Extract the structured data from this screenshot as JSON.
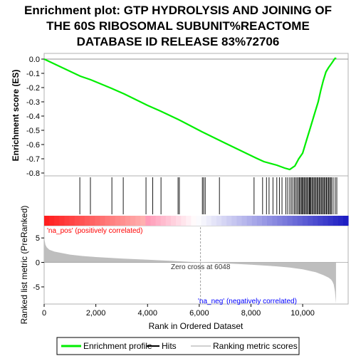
{
  "title_lines": [
    "Enrichment plot: GTP HYDROLYSIS AND JOINING OF",
    "THE 60S RIBOSOMAL SUBUNIT%REACTOME",
    "DATABASE ID RELEASE 83%72706"
  ],
  "colors": {
    "es_line": "#00ee00",
    "hits": "#000000",
    "metric_fill": "#bebebe",
    "pos_text": "#ff0000",
    "neg_text": "#0000ff",
    "zero_cross_line": "#a0a0a0",
    "frame": "#b0b0b0"
  },
  "chart_data": {
    "type": "line",
    "xlabel": "Rank in Ordered Dataset",
    "x_range": [
      0,
      11760
    ],
    "x_ticks": [
      0,
      2000,
      4000,
      6000,
      8000,
      10000
    ],
    "x_tick_labels": [
      "0",
      "2,000",
      "4,000",
      "6,000",
      "8,000",
      "10,000"
    ],
    "es_panel": {
      "ylabel": "Enrichment score (ES)",
      "ylim": [
        -0.82,
        0.04
      ],
      "y_ticks": [
        0.0,
        -0.1,
        -0.2,
        -0.3,
        -0.4,
        -0.5,
        -0.6,
        -0.7,
        -0.8
      ],
      "y_tick_labels": [
        "0.0",
        "-0.1",
        "-0.2",
        "-0.3",
        "-0.4",
        "-0.5",
        "-0.6",
        "-0.7",
        "-0.8"
      ],
      "series": [
        {
          "name": "Enrichment profile",
          "x": [
            0,
            1400,
            1800,
            2600,
            3100,
            4000,
            4500,
            5200,
            6100,
            7000,
            8200,
            8500,
            9000,
            9300,
            9500,
            9700,
            9850,
            10000,
            10150,
            10300,
            10450,
            10600,
            10700,
            10800,
            10900,
            11000,
            11100,
            11250,
            11300
          ],
          "y": [
            0.0,
            -0.12,
            -0.145,
            -0.205,
            -0.245,
            -0.325,
            -0.365,
            -0.425,
            -0.51,
            -0.59,
            -0.695,
            -0.72,
            -0.745,
            -0.765,
            -0.775,
            -0.75,
            -0.7,
            -0.66,
            -0.57,
            -0.48,
            -0.39,
            -0.3,
            -0.22,
            -0.15,
            -0.09,
            -0.06,
            -0.035,
            0.005,
            0.005
          ]
        }
      ]
    },
    "hits_panel": {
      "hit_ranks": [
        1380,
        1790,
        2620,
        3060,
        3940,
        4200,
        4520,
        5180,
        5230,
        6120,
        6170,
        6230,
        6780,
        8120,
        8450,
        8600,
        8700,
        8850,
        9000,
        9100,
        9200,
        9350,
        9420,
        9500,
        9560,
        9620,
        9680,
        9730,
        9780,
        9830,
        9870,
        9910,
        9950,
        9990,
        10020,
        10060,
        10100,
        10140,
        10180,
        10220,
        10260,
        10290,
        10320,
        10360,
        10400,
        10440,
        10480,
        10520,
        10560,
        10600,
        10640,
        10680,
        10720,
        10760,
        10800,
        10840,
        10880,
        10920,
        10960,
        11000,
        11040,
        11080,
        11120,
        11180,
        11260,
        11320
      ]
    },
    "metric_panel": {
      "ylabel": "Ranked list metric (PreRanked)",
      "ylim": [
        -8.5,
        7.5
      ],
      "y_ticks": [
        5,
        0,
        -5
      ],
      "y_tick_labels": [
        "5",
        "0",
        "-5"
      ],
      "x": [
        0,
        50,
        100,
        200,
        400,
        700,
        1000,
        1500,
        2000,
        3000,
        4000,
        5000,
        6048,
        7000,
        8000,
        9000,
        9500,
        10000,
        10500,
        10800,
        11000,
        11100,
        11150,
        11200,
        11250,
        11290
      ],
      "y": [
        5.0,
        3.6,
        3.1,
        2.6,
        2.2,
        1.9,
        1.6,
        1.3,
        1.1,
        0.8,
        0.55,
        0.3,
        0.0,
        -0.2,
        -0.45,
        -0.8,
        -1.05,
        -1.4,
        -2.0,
        -2.6,
        -3.1,
        -3.5,
        -3.9,
        -4.5,
        -6.0,
        -8.4
      ]
    },
    "annotations": {
      "pos_label": "'na_pos' (positively correlated)",
      "neg_label": "'na_neg' (negatively correlated)",
      "zero_cross": "Zero cross at 6048",
      "zero_cross_rank": 6048
    },
    "legend": {
      "items": [
        "Enrichment profile",
        "Hits",
        "Ranking metric scores"
      ],
      "placement": "bottom"
    }
  }
}
